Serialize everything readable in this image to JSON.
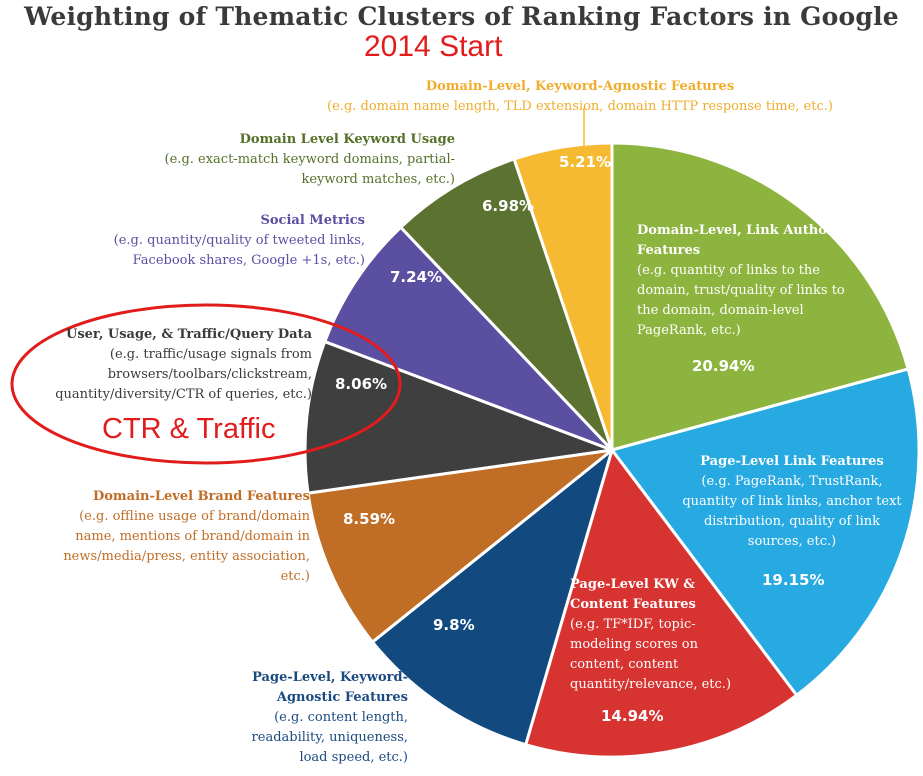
{
  "title": "Weighting of Thematic Clusters of Ranking Factors in Google",
  "subtitle": "2014 Start",
  "annotation": "CTR & Traffic",
  "chart_data": {
    "type": "pie",
    "title": "Weighting of Thematic Clusters of Ranking Factors in Google",
    "subtitle": "2014 Start",
    "slices": [
      {
        "label": "Domain-Level, Link Authority Features",
        "value": 20.94,
        "value_label": "20.94%",
        "color": "#8db43f",
        "description": "(e.g. quantity of links to the domain, trust/quality of links to the domain, domain-level PageRank, etc.)"
      },
      {
        "label": "Page-Level Link Features",
        "value": 19.15,
        "value_label": "19.15%",
        "color": "#27a9e1",
        "description": "(e.g. PageRank, TrustRank, quantity of link links, anchor text distribution, quality of link sources, etc.)"
      },
      {
        "label": "Page-Level KW & Content Features",
        "value": 14.94,
        "value_label": "14.94%",
        "color": "#d63331",
        "description": "(e.g. TF*IDF, topic-modeling scores on content, content quantity/relevance, etc.)"
      },
      {
        "label": "Page-Level, Keyword-Agnostic Features",
        "value": 9.8,
        "value_label": "9.8%",
        "color": "#124a80",
        "description": "(e.g. content length, readability, uniqueness, load speed, etc.)"
      },
      {
        "label": "Domain-Level Brand Features",
        "value": 8.59,
        "value_label": "8.59%",
        "color": "#c06d26",
        "description": "(e.g. offline usage of brand/domain name, mentions of brand/domain in news/media/press, entity association, etc.)"
      },
      {
        "label": "User, Usage, & Traffic/Query Data",
        "value": 8.06,
        "value_label": "8.06%",
        "color": "#3f3f3f",
        "description": "(e.g. traffic/usage signals from browsers/toolbars/clickstream, quantity/diversity/CTR of queries, etc.)"
      },
      {
        "label": "Social Metrics",
        "value": 7.24,
        "value_label": "7.24%",
        "color": "#5b4fa2",
        "description": "(e.g. quantity/quality of tweeted links, Facebook shares, Google +1s, etc.)"
      },
      {
        "label": "Domain Level Keyword Usage",
        "value": 6.98,
        "value_label": "6.98%",
        "color": "#5c7230",
        "description": "(e.g. exact-match keyword domains, partial-keyword matches, etc.)"
      },
      {
        "label": "Domain-Level, Keyword-Agnostic Features",
        "value": 5.21,
        "value_label": "5.21%",
        "color": "#f5b932",
        "description": "(e.g. domain name length, TLD extension, domain HTTP response time, etc.)"
      }
    ],
    "label_colors": {
      "outside_orange": "#f0ad2b",
      "outside_green": "#56702a",
      "outside_purple": "#5b4fa2",
      "outside_dark": "#3a3a3a",
      "outside_brown": "#c06d26",
      "outside_navy": "#1a4a80",
      "annotation_red": "#e21c1c"
    }
  }
}
